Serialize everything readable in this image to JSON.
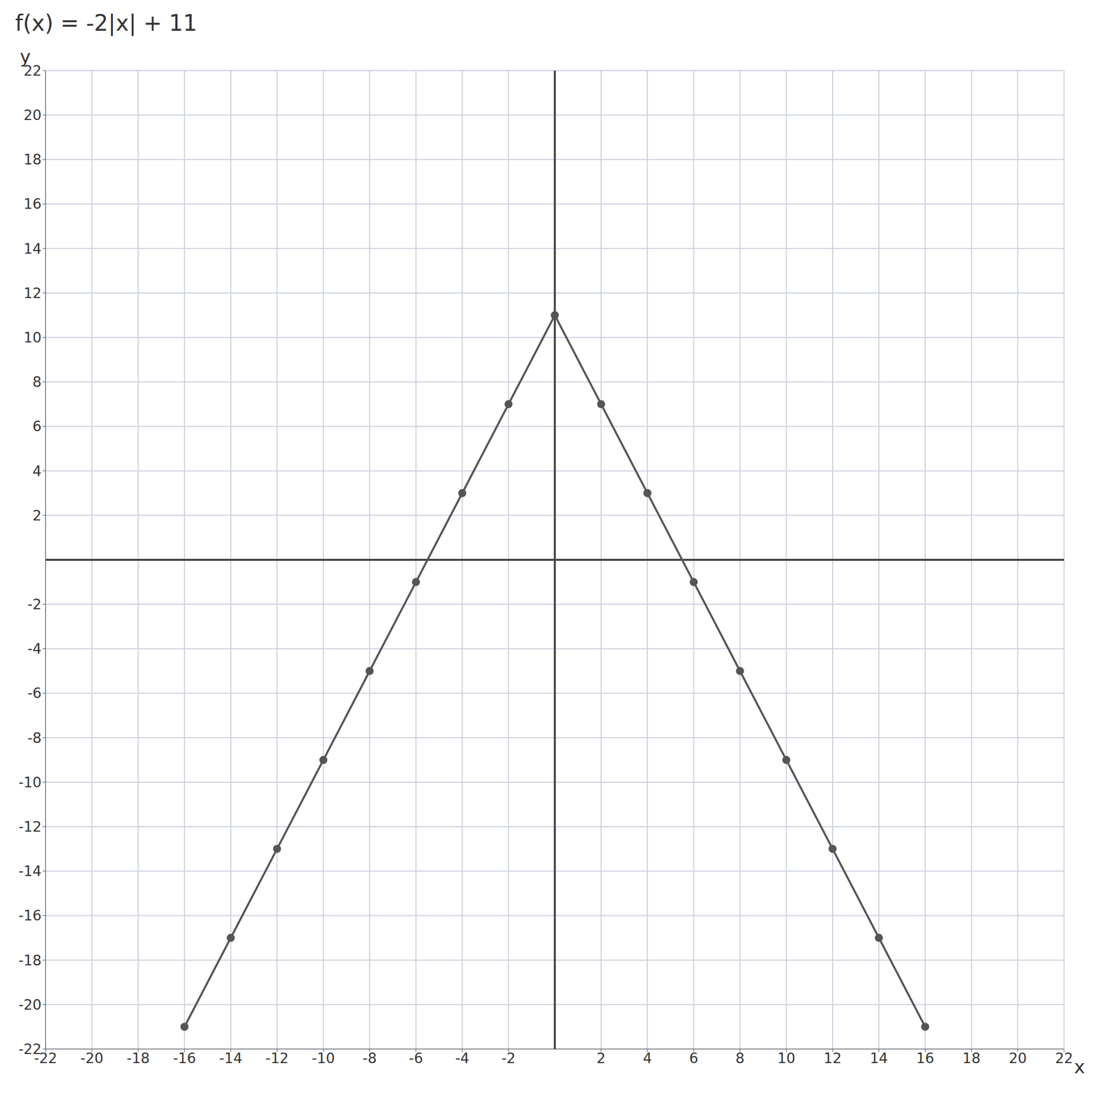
{
  "chart_data": {
    "type": "line",
    "title": "f(x) = -2|x| + 11",
    "x_label": "x",
    "y_label": "y",
    "x": [
      -16,
      -14,
      -12,
      -10,
      -8,
      -6,
      -4,
      -2,
      0,
      2,
      4,
      6,
      8,
      10,
      12,
      14,
      16
    ],
    "values": [
      -21,
      -17,
      -13,
      -9,
      -5,
      -1,
      3,
      7,
      11,
      7,
      3,
      -1,
      -5,
      -9,
      -13,
      -17,
      -21
    ],
    "color": "#555555",
    "marker": "circle",
    "line_style": "solid",
    "grid": true,
    "xlim": [
      -22,
      22
    ],
    "ylim": [
      -22,
      22
    ],
    "xticks": [
      -22,
      -20,
      -18,
      -16,
      -14,
      -12,
      -10,
      -8,
      -6,
      -4,
      -2,
      2,
      4,
      6,
      8,
      10,
      12,
      14,
      16,
      18,
      20,
      22
    ],
    "yticks": [
      -22,
      -20,
      -18,
      -16,
      -14,
      -12,
      -10,
      -8,
      -6,
      -4,
      -2,
      2,
      4,
      6,
      8,
      10,
      12,
      14,
      16,
      18,
      20,
      22
    ]
  }
}
